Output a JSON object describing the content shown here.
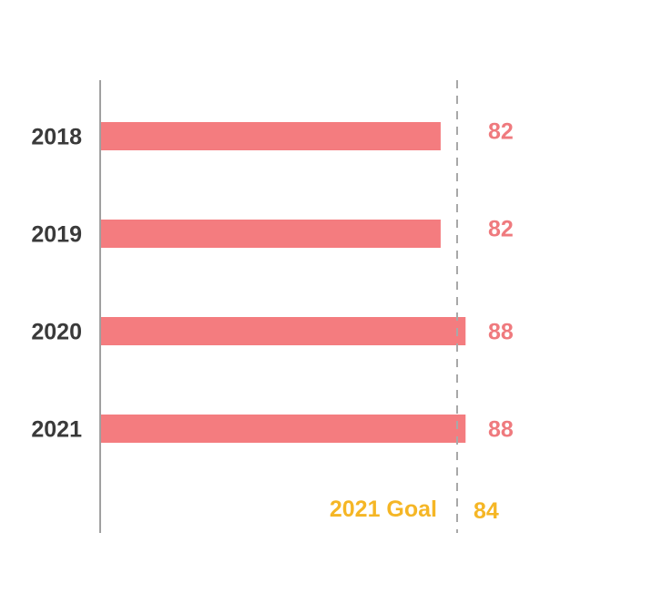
{
  "colors": {
    "bar": "#f47c7f",
    "value_label": "#ef7a7e",
    "goal": "#f5b625",
    "axis": "#a0a0a0",
    "goal_line": "#a8a8a8",
    "category_label": "#3a3a3a"
  },
  "chart_data": {
    "type": "bar",
    "orientation": "horizontal",
    "categories": [
      "2018",
      "2019",
      "2020",
      "2021"
    ],
    "values": [
      82,
      82,
      88,
      88
    ],
    "value_labels": [
      "82",
      "82",
      "88",
      "88"
    ],
    "goal": {
      "label": "2021 Goal",
      "value": 84,
      "value_label": "84",
      "line_style": "dashed"
    },
    "xlim": [
      0,
      90
    ],
    "grid": false,
    "legend": "none"
  }
}
